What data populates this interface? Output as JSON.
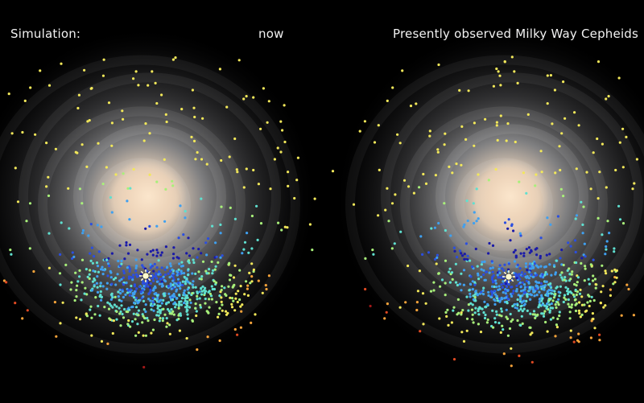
{
  "labels": {
    "simulation": "Simulation:",
    "time": "now",
    "observed": "Presently observed Milky Way Cepheids"
  },
  "palette": {
    "background": "#000000",
    "galaxy_core": "#f3dcc0",
    "galaxy_disk": "#b9b9b9",
    "cepheid_colors": [
      "#1a1aa8",
      "#2b4fe0",
      "#3fa0f0",
      "#5fe0d0",
      "#a8f07a",
      "#f2e85a",
      "#f5a33a",
      "#e04a22",
      "#a01818"
    ]
  },
  "sun_marker": "sun-position-icon"
}
